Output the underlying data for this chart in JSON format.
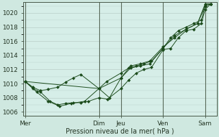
{
  "background_color": "#cfe8e0",
  "plot_bg_color": "#d6eee8",
  "grid_color": "#b8cec8",
  "vline_color": "#556655",
  "line_color": "#1a4a1a",
  "xlabel": "Pression niveau de la mer( hPa )",
  "ylim": [
    1005.5,
    1021.5
  ],
  "yticks": [
    1006,
    1008,
    1010,
    1012,
    1014,
    1016,
    1018,
    1020
  ],
  "day_labels": [
    "Mer",
    "Dim",
    "Jeu",
    "Ven",
    "Sam"
  ],
  "day_positions": [
    0.0,
    0.385,
    0.5,
    0.72,
    0.94
  ],
  "vline_positions": [
    0.0,
    0.385,
    0.5,
    0.72,
    0.94
  ],
  "series1_x": [
    0.0,
    0.04,
    0.08,
    0.12,
    0.17,
    0.21,
    0.25,
    0.29,
    0.385,
    0.425,
    0.5,
    0.54,
    0.58,
    0.62,
    0.66,
    0.72,
    0.76,
    0.8,
    0.84,
    0.88,
    0.92,
    0.94,
    0.97
  ],
  "series1_y": [
    1010.3,
    1009.5,
    1009.0,
    1009.2,
    1009.5,
    1010.2,
    1010.8,
    1011.3,
    1009.3,
    1010.3,
    1011.5,
    1012.2,
    1012.5,
    1012.8,
    1013.2,
    1015.0,
    1016.5,
    1017.5,
    1018.0,
    1018.5,
    1019.0,
    1021.0,
    1021.3
  ],
  "series2_x": [
    0.0,
    0.04,
    0.08,
    0.13,
    0.17,
    0.21,
    0.25,
    0.29,
    0.33,
    0.385,
    0.43,
    0.5,
    0.54,
    0.58,
    0.62,
    0.66,
    0.72,
    0.76,
    0.8,
    0.84,
    0.88,
    0.92,
    0.94,
    0.97
  ],
  "series2_y": [
    1010.3,
    1009.3,
    1008.8,
    1007.5,
    1007.0,
    1007.2,
    1007.3,
    1007.3,
    1007.5,
    1008.0,
    1007.8,
    1009.3,
    1010.5,
    1011.5,
    1012.0,
    1012.3,
    1014.8,
    1015.0,
    1016.5,
    1017.5,
    1017.7,
    1018.5,
    1020.5,
    1021.3
  ],
  "series3_x": [
    0.0,
    0.06,
    0.12,
    0.18,
    0.24,
    0.31,
    0.385,
    0.44,
    0.5,
    0.55,
    0.6,
    0.65,
    0.72,
    0.78,
    0.84,
    0.9,
    0.94,
    0.97
  ],
  "series3_y": [
    1010.3,
    1008.8,
    1007.5,
    1006.8,
    1007.2,
    1007.5,
    1009.3,
    1008.0,
    1010.8,
    1012.2,
    1012.5,
    1012.8,
    1015.0,
    1016.8,
    1017.7,
    1018.5,
    1021.3,
    1021.3
  ],
  "series4_x": [
    0.0,
    0.385,
    0.5,
    0.55,
    0.6,
    0.65,
    0.72,
    0.78,
    0.84,
    0.9,
    0.94,
    0.97
  ],
  "series4_y": [
    1010.3,
    1009.3,
    1010.8,
    1012.5,
    1012.8,
    1013.2,
    1015.2,
    1016.5,
    1017.7,
    1018.5,
    1021.0,
    1021.3
  ],
  "figsize": [
    3.2,
    2.0
  ],
  "dpi": 100
}
